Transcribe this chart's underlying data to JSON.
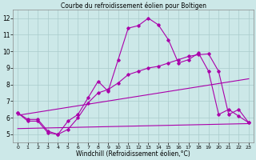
{
  "title": "Courbe du refroidissement éolien pour Boltigen",
  "xlabel": "Windchill (Refroidissement éolien,°C)",
  "xlim": [
    -0.5,
    23.5
  ],
  "ylim": [
    4.5,
    12.5
  ],
  "yticks": [
    5,
    6,
    7,
    8,
    9,
    10,
    11,
    12
  ],
  "xticks": [
    0,
    1,
    2,
    3,
    4,
    5,
    6,
    7,
    8,
    9,
    10,
    11,
    12,
    13,
    14,
    15,
    16,
    17,
    18,
    19,
    20,
    21,
    22,
    23
  ],
  "bg_color": "#cce8e8",
  "grid_color": "#aacccc",
  "line_color": "#aa00aa",
  "line1_x": [
    0,
    1,
    2,
    3,
    4,
    5,
    6,
    7,
    8,
    9,
    10,
    11,
    12,
    13,
    14,
    15,
    16,
    17,
    18,
    19,
    20,
    21,
    22,
    23
  ],
  "line1_y": [
    6.3,
    5.8,
    5.8,
    5.1,
    5.0,
    5.8,
    6.2,
    7.2,
    8.2,
    7.6,
    9.5,
    11.4,
    11.55,
    12.0,
    11.6,
    10.7,
    9.3,
    9.5,
    9.9,
    8.8,
    6.2,
    6.5,
    6.1,
    5.7
  ],
  "line2_x": [
    0,
    1,
    2,
    3,
    4,
    5,
    6,
    7,
    8,
    9,
    10,
    11,
    12,
    13,
    14,
    15,
    16,
    17,
    18,
    19,
    20,
    21,
    22,
    23
  ],
  "line2_y": [
    6.3,
    5.9,
    5.9,
    5.2,
    5.0,
    5.3,
    6.0,
    6.9,
    7.5,
    7.7,
    8.1,
    8.6,
    8.8,
    9.0,
    9.1,
    9.3,
    9.5,
    9.7,
    9.8,
    9.85,
    8.8,
    6.2,
    6.5,
    5.7
  ],
  "line3_x": [
    0,
    23
  ],
  "line3_y": [
    6.15,
    8.35
  ],
  "line4_x": [
    0,
    23
  ],
  "line4_y": [
    5.35,
    5.65
  ],
  "title_fontsize": 5.5,
  "xlabel_fontsize": 5.5,
  "tick_fontsize_x": 4.5,
  "tick_fontsize_y": 5.5
}
